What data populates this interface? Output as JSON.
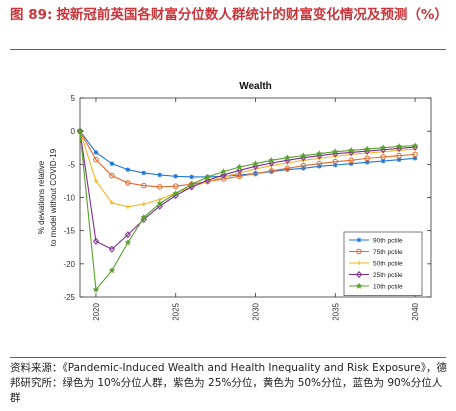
{
  "figure": {
    "number": "图 89:",
    "title": "按新冠前英国各财富分位数人群统计的财富变化情况及预测（%）",
    "source": "资料来源：《Pandemic-Induced Wealth and Health Inequality and Risk Exposure》，德邦研究所：绿色为 10%分位人群，紫色为 25%分位，黄色为 50%分位，蓝色为 90%分位人群"
  },
  "chart_data": {
    "type": "line",
    "title": "Wealth",
    "xlabel": "",
    "ylabel": "% deviations relative to model without COVID-19",
    "xlim": [
      2019,
      2041
    ],
    "ylim": [
      -25,
      5
    ],
    "xticks": [
      2020,
      2025,
      2030,
      2035,
      2040
    ],
    "yticks": [
      5,
      0,
      -5,
      -10,
      -15,
      -20,
      -25
    ],
    "grid": false,
    "legend_position": "lower-right",
    "x": [
      2019,
      2020,
      2021,
      2022,
      2023,
      2024,
      2025,
      2026,
      2027,
      2028,
      2029,
      2030,
      2031,
      2032,
      2033,
      2034,
      2035,
      2036,
      2037,
      2038,
      2039,
      2040
    ],
    "series": [
      {
        "name": "90th pctile",
        "color": "#1f77d4",
        "marker": "asterisk",
        "values": [
          0,
          -3.2,
          -4.9,
          -5.8,
          -6.3,
          -6.6,
          -6.8,
          -6.9,
          -6.9,
          -6.8,
          -6.6,
          -6.4,
          -6.1,
          -5.8,
          -5.6,
          -5.3,
          -5.1,
          -4.9,
          -4.7,
          -4.5,
          -4.3,
          -4.1
        ]
      },
      {
        "name": "75th pctile",
        "color": "#e36b2e",
        "marker": "circle",
        "values": [
          0,
          -4.3,
          -6.7,
          -7.8,
          -8.2,
          -8.4,
          -8.3,
          -8.0,
          -7.6,
          -7.2,
          -6.8,
          -6.4,
          -6.0,
          -5.6,
          -5.2,
          -4.9,
          -4.6,
          -4.4,
          -4.1,
          -3.9,
          -3.7,
          -3.5
        ]
      },
      {
        "name": "50th pctile",
        "color": "#f0b323",
        "marker": "plus",
        "values": [
          0,
          -7.5,
          -10.8,
          -11.4,
          -11.0,
          -10.3,
          -9.3,
          -8.4,
          -7.6,
          -6.9,
          -6.3,
          -5.7,
          -5.2,
          -4.8,
          -4.4,
          -4.1,
          -3.8,
          -3.5,
          -3.3,
          -3.1,
          -2.9,
          -2.7
        ]
      },
      {
        "name": "25th pctile",
        "color": "#7e2f8e",
        "marker": "diamond",
        "values": [
          0,
          -16.6,
          -17.8,
          -15.6,
          -13.3,
          -11.3,
          -9.7,
          -8.4,
          -7.4,
          -6.6,
          -5.9,
          -5.3,
          -4.8,
          -4.4,
          -4.0,
          -3.7,
          -3.4,
          -3.2,
          -3.0,
          -2.8,
          -2.6,
          -2.4
        ]
      },
      {
        "name": "10th pctile",
        "color": "#5aa02c",
        "marker": "star",
        "values": [
          0,
          -23.9,
          -21.0,
          -16.8,
          -13.0,
          -10.9,
          -9.4,
          -8.0,
          -6.9,
          -6.1,
          -5.4,
          -4.9,
          -4.4,
          -4.0,
          -3.7,
          -3.4,
          -3.1,
          -2.9,
          -2.7,
          -2.5,
          -2.3,
          -2.2
        ]
      }
    ]
  }
}
